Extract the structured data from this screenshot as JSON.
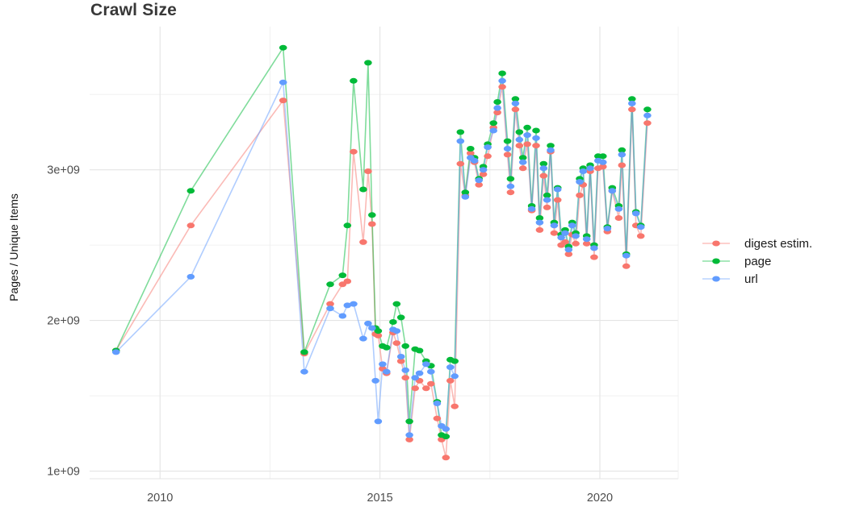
{
  "page_title": "Crawl Size",
  "colors": {
    "grid_major": "#e4e4e4",
    "grid_minor": "#f0f0f0",
    "panel_edge": "#e4e4e4",
    "tick_label": "#4d4d4d",
    "title_text": "#383838",
    "body_text": "#1a1a1a",
    "background": "#ffffff"
  },
  "chart_data": {
    "type": "line",
    "title": "Crawl Size",
    "xlabel": "",
    "ylabel": "Pages / Unique Items",
    "unit": "pages (values in 1e9 / billions)",
    "grid": true,
    "legend_position": "right",
    "xlim": [
      2008.4,
      2021.78
    ],
    "ylim": [
      0.95,
      3.95
    ],
    "x_ticks": [
      {
        "value": 2010,
        "label": "2010"
      },
      {
        "value": 2015,
        "label": "2015"
      },
      {
        "value": 2020,
        "label": "2020"
      }
    ],
    "y_ticks": [
      {
        "value": 1,
        "label": "1e+09"
      },
      {
        "value": 2,
        "label": "2e+09"
      },
      {
        "value": 3,
        "label": "3e+09"
      }
    ],
    "x_minor": [
      2012.5,
      2017.5
    ],
    "y_minor": [
      1.5,
      2.5,
      3.5
    ],
    "x": [
      2009.0,
      2010.7,
      2012.8,
      2013.28,
      2013.87,
      2014.15,
      2014.26,
      2014.4,
      2014.62,
      2014.73,
      2014.82,
      2014.9,
      2014.96,
      2015.06,
      2015.15,
      2015.3,
      2015.38,
      2015.48,
      2015.58,
      2015.67,
      2015.8,
      2015.9,
      2016.05,
      2016.16,
      2016.3,
      2016.4,
      2016.5,
      2016.6,
      2016.7,
      2016.83,
      2016.94,
      2017.06,
      2017.15,
      2017.25,
      2017.35,
      2017.45,
      2017.58,
      2017.67,
      2017.78,
      2017.9,
      2017.97,
      2018.08,
      2018.17,
      2018.25,
      2018.35,
      2018.45,
      2018.55,
      2018.63,
      2018.72,
      2018.8,
      2018.88,
      2018.96,
      2019.04,
      2019.12,
      2019.21,
      2019.29,
      2019.37,
      2019.45,
      2019.54,
      2019.62,
      2019.7,
      2019.78,
      2019.87,
      2019.96,
      2020.07,
      2020.17,
      2020.28,
      2020.43,
      2020.5,
      2020.6,
      2020.73,
      2020.82,
      2020.93,
      2021.08
    ],
    "series": [
      {
        "name": "digest estim.",
        "color": "#F8766D",
        "values": [
          1.8,
          2.63,
          3.46,
          1.78,
          2.11,
          2.24,
          2.26,
          3.12,
          2.52,
          2.99,
          2.64,
          1.91,
          1.9,
          1.68,
          1.65,
          1.92,
          1.85,
          1.73,
          1.62,
          1.21,
          1.55,
          1.6,
          1.55,
          1.58,
          1.35,
          1.21,
          1.09,
          1.6,
          1.43,
          3.04,
          2.83,
          3.11,
          3.05,
          2.9,
          2.97,
          3.09,
          3.28,
          3.38,
          3.55,
          3.1,
          2.85,
          3.4,
          3.16,
          3.01,
          3.17,
          2.73,
          3.16,
          2.6,
          2.96,
          2.75,
          3.12,
          2.58,
          2.8,
          2.5,
          2.52,
          2.44,
          2.57,
          2.51,
          2.83,
          2.9,
          2.51,
          2.99,
          2.42,
          3.01,
          3.02,
          2.59,
          2.86,
          2.68,
          3.03,
          2.36,
          3.4,
          2.63,
          2.56,
          3.31
        ]
      },
      {
        "name": "page",
        "color": "#00BA38",
        "values": [
          1.8,
          2.86,
          3.81,
          1.79,
          2.24,
          2.3,
          2.63,
          3.59,
          2.87,
          3.71,
          2.7,
          1.95,
          1.93,
          1.83,
          1.82,
          1.99,
          2.11,
          2.02,
          1.83,
          1.33,
          1.81,
          1.8,
          1.73,
          1.7,
          1.46,
          1.24,
          1.23,
          1.74,
          1.73,
          3.25,
          2.85,
          3.14,
          3.08,
          2.94,
          3.02,
          3.17,
          3.31,
          3.45,
          3.64,
          3.19,
          2.94,
          3.47,
          3.25,
          3.08,
          3.28,
          2.76,
          3.26,
          2.68,
          3.04,
          2.83,
          3.16,
          2.65,
          2.88,
          2.57,
          2.6,
          2.49,
          2.65,
          2.58,
          2.94,
          3.01,
          2.56,
          3.03,
          2.5,
          3.09,
          3.09,
          2.62,
          2.88,
          2.76,
          3.13,
          2.44,
          3.47,
          2.72,
          2.63,
          3.4
        ]
      },
      {
        "name": "url",
        "color": "#619CFF",
        "values": [
          1.79,
          2.29,
          3.58,
          1.66,
          2.08,
          2.03,
          2.1,
          2.11,
          1.88,
          1.98,
          1.95,
          1.6,
          1.33,
          1.71,
          1.66,
          1.94,
          1.93,
          1.76,
          1.67,
          1.24,
          1.62,
          1.65,
          1.71,
          1.66,
          1.45,
          1.3,
          1.28,
          1.69,
          1.63,
          3.19,
          2.82,
          3.08,
          3.06,
          2.93,
          3.0,
          3.15,
          3.26,
          3.41,
          3.59,
          3.14,
          2.89,
          3.44,
          3.2,
          3.05,
          3.23,
          2.74,
          3.21,
          2.65,
          3.01,
          2.8,
          3.13,
          2.63,
          2.87,
          2.55,
          2.58,
          2.47,
          2.63,
          2.56,
          2.92,
          2.99,
          2.54,
          3.01,
          2.48,
          3.06,
          3.05,
          2.61,
          2.86,
          2.74,
          3.1,
          2.43,
          3.44,
          2.71,
          2.62,
          3.36
        ]
      }
    ]
  }
}
